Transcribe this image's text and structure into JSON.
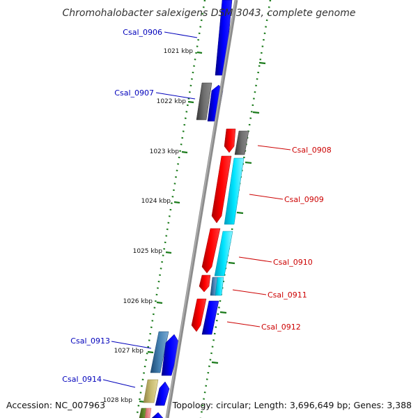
{
  "title": "Chromohalobacter salexigens DSM 3043, complete genome",
  "accession": "Accession: NC_007963",
  "topology": "Topology: circular; Length: 3,696,649 bp; Genes: 3,388",
  "colors": {
    "backbone": "#8c8c8c",
    "tick": "#1a7a1a",
    "label_left": "#0000bb",
    "label_right": "#cc0000",
    "blue": "#0000ff",
    "red": "#ff0000",
    "gray": "#707070",
    "cyan": "#00e5ff",
    "steel": "#4682b4",
    "khaki": "#c8bb70"
  },
  "scale_labels": [
    "1021 kbp",
    "1022 kbp",
    "1023 kbp",
    "1024 kbp",
    "1025 kbp",
    "1026 kbp",
    "1027 kbp",
    "1028 kbp"
  ],
  "gene_labels": [
    {
      "name": "Csal_0906",
      "strand": "left"
    },
    {
      "name": "Csal_0907",
      "strand": "left"
    },
    {
      "name": "Csal_0908",
      "strand": "right"
    },
    {
      "name": "Csal_0909",
      "strand": "right"
    },
    {
      "name": "Csal_0910",
      "strand": "right"
    },
    {
      "name": "Csal_0911",
      "strand": "right"
    },
    {
      "name": "Csal_0912",
      "strand": "right"
    },
    {
      "name": "Csal_0913",
      "strand": "left"
    },
    {
      "name": "Csal_0914",
      "strand": "left"
    }
  ]
}
